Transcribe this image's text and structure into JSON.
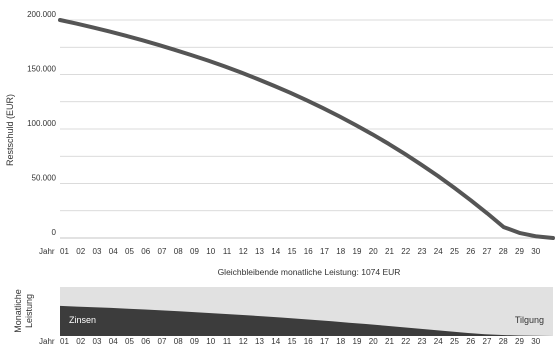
{
  "chart_data": [
    {
      "type": "line",
      "ylabel": "Restschuld (EUR)",
      "xlabel": "Jahr",
      "x_ticks": [
        "01",
        "02",
        "03",
        "04",
        "05",
        "06",
        "07",
        "08",
        "09",
        "10",
        "11",
        "12",
        "13",
        "14",
        "15",
        "16",
        "17",
        "18",
        "19",
        "20",
        "21",
        "22",
        "23",
        "24",
        "25",
        "26",
        "27",
        "28",
        "29",
        "30"
      ],
      "y_ticks": [
        "0",
        "50.000",
        "100.000",
        "150.000",
        "200.000"
      ],
      "ylim": [
        0,
        200000
      ],
      "x": [
        0,
        1,
        2,
        3,
        4,
        5,
        6,
        7,
        8,
        9,
        10,
        11,
        12,
        13,
        14,
        15,
        16,
        17,
        18,
        19,
        20,
        21,
        22,
        23,
        24,
        25,
        26,
        27,
        28,
        29,
        30
      ],
      "values": [
        200000,
        196700,
        193200,
        189500,
        185600,
        181500,
        177200,
        172600,
        167800,
        162800,
        157500,
        151900,
        146000,
        139800,
        133300,
        126400,
        119200,
        111600,
        103600,
        95200,
        86300,
        77000,
        67200,
        56900,
        46000,
        34600,
        22600,
        10000,
        4500,
        1500,
        0
      ],
      "grid": true,
      "line_color": "#555555"
    },
    {
      "type": "area",
      "title": "Gleichbleibende monatliche Leistung: 1074 EUR",
      "ylabel": "Monatliche Leistung",
      "xlabel": "Jahr",
      "x_ticks": [
        "01",
        "02",
        "03",
        "04",
        "05",
        "06",
        "07",
        "08",
        "09",
        "10",
        "11",
        "12",
        "13",
        "14",
        "15",
        "16",
        "17",
        "18",
        "19",
        "20",
        "21",
        "22",
        "23",
        "24",
        "25",
        "26",
        "27",
        "28",
        "29",
        "30"
      ],
      "monthly_payment": 1074,
      "series": [
        {
          "name": "Zinsen",
          "color": "#3c3c3c",
          "values": [
            660,
            645,
            630,
            615,
            598,
            580,
            562,
            542,
            522,
            500,
            478,
            455,
            430,
            405,
            378,
            350,
            322,
            292,
            262,
            230,
            198,
            165,
            132,
            98,
            66,
            40,
            22,
            10,
            4,
            1
          ]
        },
        {
          "name": "Tilgung",
          "color": "#e1e1e1",
          "values": [
            414,
            429,
            444,
            459,
            476,
            494,
            512,
            532,
            552,
            574,
            596,
            619,
            644,
            669,
            696,
            724,
            752,
            782,
            812,
            844,
            876,
            909,
            942,
            976,
            1008,
            1034,
            1052,
            1064,
            1070,
            1073
          ]
        }
      ]
    }
  ]
}
